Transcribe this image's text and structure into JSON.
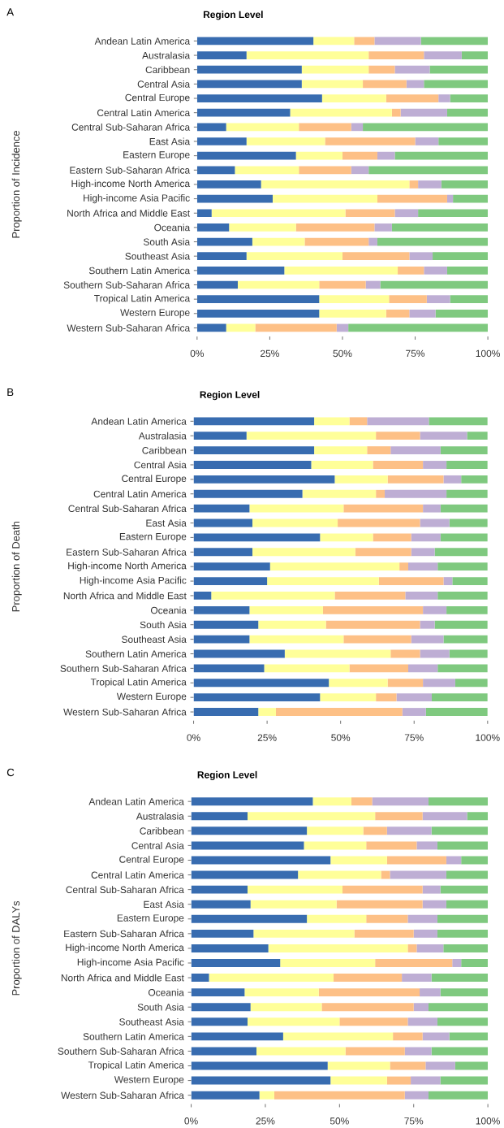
{
  "chart_data": [
    {
      "type": "bar",
      "orientation": "horizontal",
      "stacked": true,
      "title": "Region Level",
      "ylabel": "Proportion of Incidence",
      "annotations": [
        "A"
      ],
      "categories": [
        "Andean Latin America",
        "Australasia",
        "Caribbean",
        "Central Asia",
        "Central Europe",
        "Central Latin America",
        "Central Sub-Saharan Africa",
        "East Asia",
        "Eastern Europe",
        "Eastern Sub-Saharan Africa",
        "High-income North America",
        "High-income Asia Pacific",
        "North Africa and Middle East",
        "Oceania",
        "South Asia",
        "Southeast Asia",
        "Southern Latin America",
        "Southern Sub-Saharan Africa",
        "Tropical Latin America",
        "Western Europe",
        "Western Sub-Saharan Africa"
      ],
      "xlim": [
        0,
        100
      ],
      "xticks": [
        {
          "value": 0,
          "label": "0%"
        },
        {
          "value": 25,
          "label": "25%"
        },
        {
          "value": 50,
          "label": "50%"
        },
        {
          "value": 75,
          "label": "75%"
        },
        {
          "value": 100,
          "label": "100%"
        }
      ],
      "series": [
        {
          "color": "#386cb0",
          "values": [
            40,
            17,
            36,
            36,
            43,
            32,
            10,
            17,
            34,
            13,
            22,
            26,
            5,
            11,
            19,
            17,
            30,
            14,
            42,
            42,
            10
          ]
        },
        {
          "color": "#ffff99",
          "values": [
            14,
            42,
            23,
            21,
            22,
            35,
            25,
            27,
            16,
            22,
            51,
            36,
            46,
            23,
            18,
            33,
            39,
            28,
            24,
            23,
            10
          ]
        },
        {
          "color": "#fdc086",
          "values": [
            7,
            19,
            9,
            15,
            18,
            3,
            18,
            31,
            12,
            18,
            3,
            24,
            17,
            27,
            22,
            23,
            9,
            16,
            13,
            8,
            28
          ]
        },
        {
          "color": "#beaed4",
          "values": [
            16,
            13,
            12,
            6,
            4,
            16,
            4,
            8,
            6,
            6,
            8,
            2,
            8,
            6,
            3,
            8,
            8,
            5,
            8,
            9,
            4
          ]
        },
        {
          "color": "#7fc97f",
          "values": [
            23,
            9,
            20,
            22,
            13,
            14,
            43,
            17,
            32,
            41,
            16,
            12,
            24,
            33,
            38,
            19,
            14,
            37,
            13,
            18,
            48
          ]
        }
      ]
    },
    {
      "type": "bar",
      "orientation": "horizontal",
      "stacked": true,
      "title": "Region Level",
      "ylabel": "Proportion of Death",
      "annotations": [
        "B"
      ],
      "categories": [
        "Andean Latin America",
        "Australasia",
        "Caribbean",
        "Central Asia",
        "Central Europe",
        "Central Latin America",
        "Central Sub-Saharan Africa",
        "East Asia",
        "Eastern Europe",
        "Eastern Sub-Saharan Africa",
        "High-income North America",
        "High-income Asia Pacific",
        "North Africa and Middle East",
        "Oceania",
        "South Asia",
        "Southeast Asia",
        "Southern Latin America",
        "Southern Sub-Saharan Africa",
        "Tropical Latin America",
        "Western Europe",
        "Western Sub-Saharan Africa"
      ],
      "xlim": [
        0,
        100
      ],
      "xticks": [
        {
          "value": 0,
          "label": "0%"
        },
        {
          "value": 25,
          "label": "25%"
        },
        {
          "value": 50,
          "label": "50%"
        },
        {
          "value": 75,
          "label": "75%"
        },
        {
          "value": 100,
          "label": "100%"
        }
      ],
      "series": [
        {
          "color": "#386cb0",
          "values": [
            41,
            18,
            41,
            40,
            48,
            37,
            19,
            20,
            43,
            20,
            26,
            25,
            6,
            19,
            22,
            19,
            31,
            24,
            46,
            43,
            22
          ]
        },
        {
          "color": "#ffff99",
          "values": [
            12,
            44,
            18,
            21,
            18,
            25,
            32,
            29,
            18,
            35,
            44,
            38,
            42,
            25,
            23,
            32,
            36,
            29,
            20,
            19,
            6
          ]
        },
        {
          "color": "#fdc086",
          "values": [
            6,
            15,
            8,
            17,
            19,
            3,
            27,
            28,
            13,
            19,
            3,
            22,
            24,
            34,
            32,
            23,
            10,
            20,
            12,
            7,
            43
          ]
        },
        {
          "color": "#beaed4",
          "values": [
            21,
            16,
            17,
            8,
            6,
            21,
            6,
            10,
            10,
            8,
            10,
            3,
            11,
            8,
            5,
            11,
            10,
            10,
            11,
            12,
            8
          ]
        },
        {
          "color": "#7fc97f",
          "values": [
            20,
            7,
            16,
            14,
            9,
            14,
            16,
            13,
            16,
            18,
            17,
            12,
            17,
            14,
            18,
            15,
            13,
            17,
            11,
            19,
            21
          ]
        }
      ]
    },
    {
      "type": "bar",
      "orientation": "horizontal",
      "stacked": true,
      "title": "Region Level",
      "ylabel": "Proportion of DALYs",
      "annotations": [
        "C"
      ],
      "categories": [
        "Andean Latin America",
        "Australasia",
        "Caribbean",
        "Central Asia",
        "Central Europe",
        "Central Latin America",
        "Central Sub-Saharan Africa",
        "East Asia",
        "Eastern Europe",
        "Eastern Sub-Saharan Africa",
        "High-income North America",
        "High-income Asia Pacific",
        "North Africa and Middle East",
        "Oceania",
        "South Asia",
        "Southeast Asia",
        "Southern Latin America",
        "Southern Sub-Saharan Africa",
        "Tropical Latin America",
        "Western Europe",
        "Western Sub-Saharan Africa"
      ],
      "xlim": [
        0,
        100
      ],
      "xticks": [
        {
          "value": 0,
          "label": "0%"
        },
        {
          "value": 25,
          "label": "25%"
        },
        {
          "value": 50,
          "label": "50%"
        },
        {
          "value": 75,
          "label": "75%"
        },
        {
          "value": 100,
          "label": "100%"
        }
      ],
      "series": [
        {
          "color": "#386cb0",
          "values": [
            41,
            19,
            39,
            38,
            47,
            36,
            19,
            20,
            39,
            21,
            26,
            30,
            6,
            18,
            20,
            19,
            31,
            22,
            46,
            47,
            23
          ]
        },
        {
          "color": "#ffff99",
          "values": [
            13,
            43,
            19,
            21,
            19,
            28,
            32,
            29,
            20,
            34,
            47,
            32,
            42,
            25,
            24,
            31,
            37,
            30,
            21,
            19,
            5
          ]
        },
        {
          "color": "#fdc086",
          "values": [
            7,
            16,
            8,
            17,
            20,
            3,
            27,
            29,
            14,
            20,
            3,
            26,
            23,
            34,
            31,
            23,
            10,
            20,
            12,
            8,
            44
          ]
        },
        {
          "color": "#beaed4",
          "values": [
            19,
            15,
            15,
            7,
            5,
            19,
            6,
            8,
            10,
            8,
            9,
            3,
            10,
            7,
            5,
            10,
            9,
            9,
            10,
            10,
            8
          ]
        },
        {
          "color": "#7fc97f",
          "values": [
            20,
            7,
            19,
            17,
            9,
            14,
            16,
            14,
            17,
            17,
            15,
            9,
            19,
            16,
            20,
            17,
            13,
            19,
            11,
            16,
            20
          ]
        }
      ]
    }
  ]
}
